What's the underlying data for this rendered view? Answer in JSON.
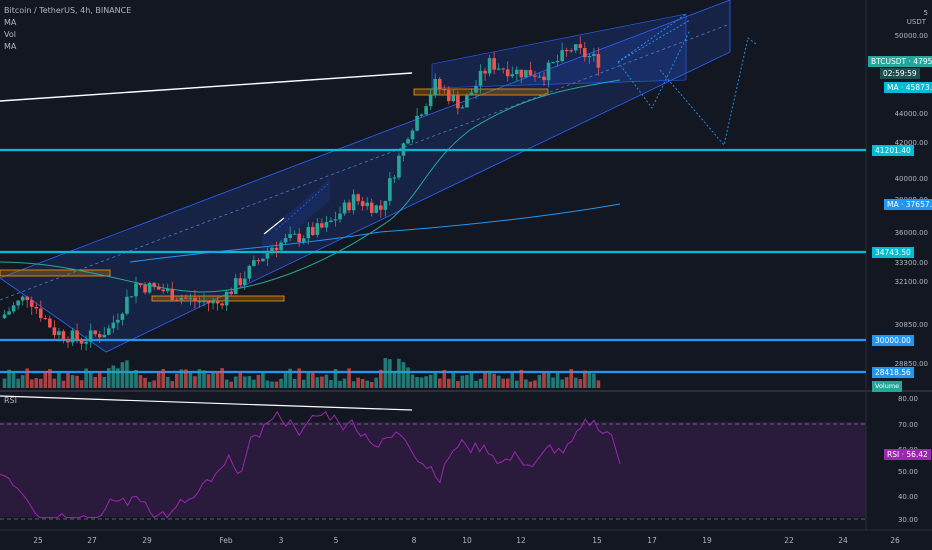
{
  "header": {
    "symbol_line": "Bitcoin / TetherUS, 4h, BINANCE",
    "indicators": [
      "MA",
      "Vol",
      "MA"
    ]
  },
  "axis": {
    "currency": "USDT",
    "price_ticks": [
      "5",
      "50000.00",
      "44000.00",
      "42000.00",
      "40000.00",
      "38000.00",
      "36000.00",
      "33300.00",
      "32100.00",
      "30850.00",
      "28850.00"
    ],
    "rsi_ticks": [
      "80.00",
      "70.00",
      "60.00",
      "50.00",
      "40.00",
      "30.00"
    ],
    "date_ticks": [
      "25",
      "27",
      "29",
      "Feb",
      "3",
      "5",
      "8",
      "10",
      "12",
      "15",
      "17",
      "19",
      "22",
      "24",
      "26"
    ]
  },
  "labels": {
    "last_symbol": "BTCUSDT",
    "last_price": "47958.06",
    "countdown": "02:59:59",
    "ma_fast_name": "MA",
    "ma_fast_value": "45873.45",
    "ma_slow_name": "MA",
    "ma_slow_value": "37657.34",
    "level_1": "41201.40",
    "level_2": "34743.50",
    "level_3": "30000.00",
    "level_4": "28418.56",
    "volume_label": "Volume",
    "rsi_name": "RSI",
    "rsi_value": "56.42",
    "rsi_badge_name": "RSI",
    "rsi_badge_value": "56.42"
  },
  "colors": {
    "background": "#131722",
    "up": "#26a69a",
    "down": "#ef5350",
    "level_line": "#00bcd4",
    "level_line_blue": "#2196f3",
    "channel": "#2962ff",
    "rsi": "#9c27b0",
    "zone": "#ff9800"
  },
  "chart_data": [
    {
      "type": "candlestick",
      "title": "Bitcoin / TetherUS, 4h, BINANCE",
      "x_range": [
        "Jan 24",
        "Feb 26"
      ],
      "y_range": [
        27800,
        51200
      ],
      "close_path": [
        {
          "date": "Jan 24",
          "close": 32200
        },
        {
          "date": "Jan 25",
          "close": 33600
        },
        {
          "date": "Jan 26",
          "close": 31400
        },
        {
          "date": "Jan 27",
          "close": 30850
        },
        {
          "date": "Jan 28",
          "close": 31500
        },
        {
          "date": "Jan 29",
          "close": 34300
        },
        {
          "date": "Jan 30",
          "close": 33900
        },
        {
          "date": "Jan 31",
          "close": 33300
        },
        {
          "date": "Feb 1",
          "close": 33100
        },
        {
          "date": "Feb 2",
          "close": 34800
        },
        {
          "date": "Feb 3",
          "close": 36600
        },
        {
          "date": "Feb 4",
          "close": 37200
        },
        {
          "date": "Feb 5",
          "close": 37800
        },
        {
          "date": "Feb 6",
          "close": 39500
        },
        {
          "date": "Feb 7",
          "close": 38900
        },
        {
          "date": "Feb 8",
          "close": 43600
        },
        {
          "date": "Feb 9",
          "close": 46500
        },
        {
          "date": "Feb 10",
          "close": 45200
        },
        {
          "date": "Feb 11",
          "close": 47800
        },
        {
          "date": "Feb 12",
          "close": 47300
        },
        {
          "date": "Feb 13",
          "close": 47200
        },
        {
          "date": "Feb 14",
          "close": 48700
        },
        {
          "date": "Feb 15",
          "close": 47958
        }
      ],
      "horizontal_levels": [
        41201.4,
        34743.5,
        30000.0,
        28418.56
      ],
      "ma_values": {
        "fast": 45873.45,
        "slow": 37657.34
      }
    },
    {
      "type": "line",
      "series": [
        {
          "name": "RSI",
          "last": 56.42
        }
      ],
      "y_range": [
        25,
        85
      ],
      "guides": [
        70,
        30
      ]
    }
  ]
}
